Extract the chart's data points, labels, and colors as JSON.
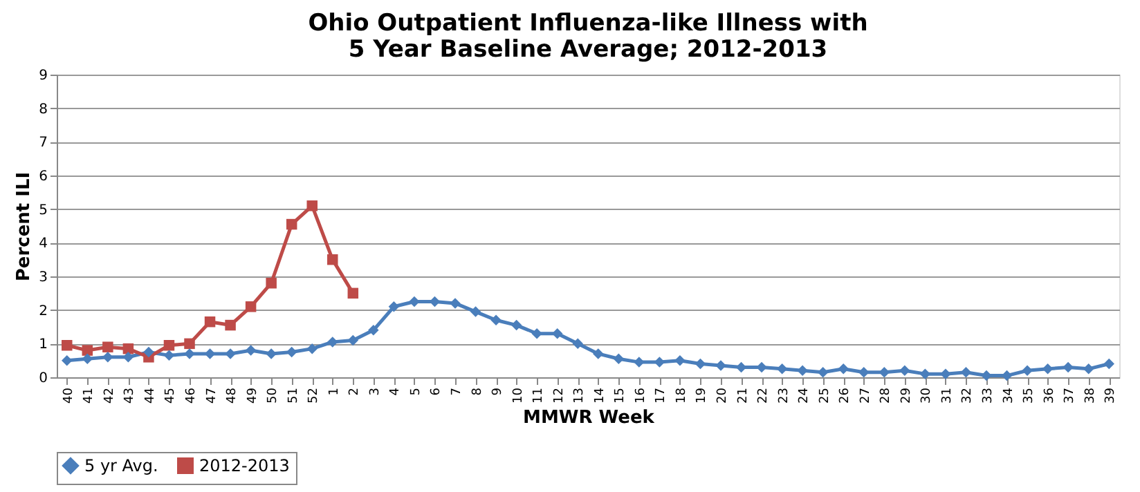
{
  "chart_data": {
    "type": "line",
    "title": [
      "Ohio Outpatient Influenza-like Illness with",
      "5 Year Baseline Average; 2012-2013"
    ],
    "xlabel": "MMWR Week",
    "ylabel": "Percent ILI",
    "categories": [
      "40",
      "41",
      "42",
      "43",
      "44",
      "45",
      "46",
      "47",
      "48",
      "49",
      "50",
      "51",
      "52",
      "1",
      "2",
      "3",
      "4",
      "5",
      "6",
      "7",
      "8",
      "9",
      "10",
      "11",
      "12",
      "13",
      "14",
      "15",
      "16",
      "17",
      "18",
      "19",
      "20",
      "21",
      "22",
      "23",
      "24",
      "25",
      "26",
      "27",
      "28",
      "29",
      "30",
      "31",
      "32",
      "33",
      "34",
      "35",
      "36",
      "37",
      "38",
      "39"
    ],
    "series": [
      {
        "name": "5 yr Avg.",
        "color": "#4a7ebb",
        "marker": "diamond",
        "values": [
          0.5,
          0.55,
          0.6,
          0.6,
          0.75,
          0.65,
          0.7,
          0.7,
          0.7,
          0.8,
          0.7,
          0.75,
          0.85,
          1.05,
          1.1,
          1.4,
          2.1,
          2.25,
          2.25,
          2.2,
          1.95,
          1.7,
          1.55,
          1.3,
          1.3,
          1.0,
          0.7,
          0.55,
          0.45,
          0.45,
          0.5,
          0.4,
          0.35,
          0.3,
          0.3,
          0.25,
          0.2,
          0.15,
          0.25,
          0.15,
          0.15,
          0.2,
          0.1,
          0.1,
          0.15,
          0.05,
          0.05,
          0.2,
          0.25,
          0.3,
          0.25,
          0.4
        ]
      },
      {
        "name": "2012-2013",
        "color": "#be4b48",
        "marker": "square",
        "values": [
          0.95,
          0.8,
          0.9,
          0.85,
          0.6,
          0.95,
          1.0,
          1.65,
          1.55,
          2.1,
          2.8,
          4.55,
          5.1,
          3.5,
          2.5,
          null,
          null,
          null,
          null,
          null,
          null,
          null,
          null,
          null,
          null,
          null,
          null,
          null,
          null,
          null,
          null,
          null,
          null,
          null,
          null,
          null,
          null,
          null,
          null,
          null,
          null,
          null,
          null,
          null,
          null,
          null,
          null,
          null,
          null,
          null,
          null,
          null
        ]
      }
    ],
    "ylim": [
      0,
      9
    ],
    "yticks": [
      0,
      1,
      2,
      3,
      4,
      5,
      6,
      7,
      8,
      9
    ],
    "grid": "y",
    "legend": "bottom",
    "line_style": "solid"
  }
}
